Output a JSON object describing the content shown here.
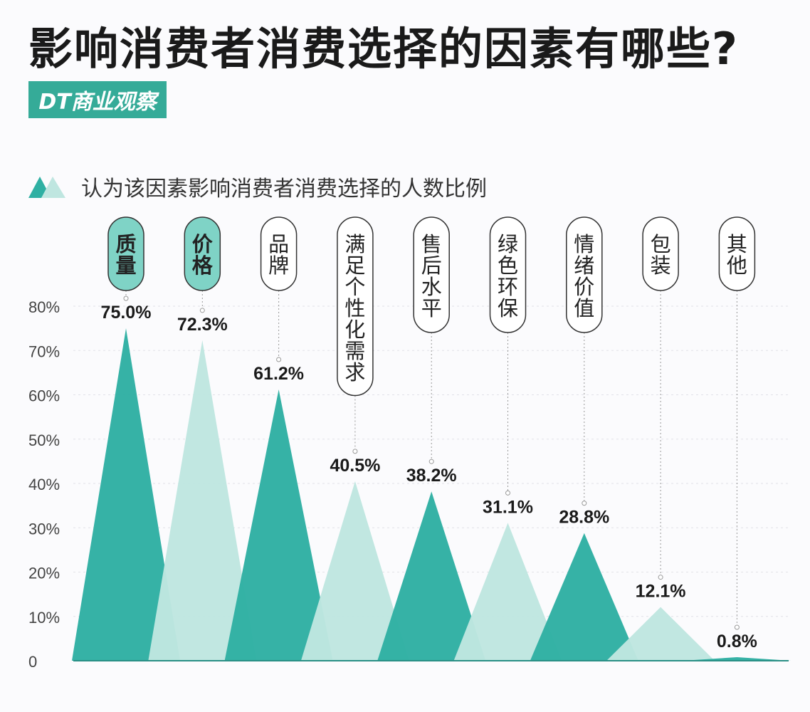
{
  "title": "影响消费者消费选择的因素有哪些?",
  "logo": "DT商业观察",
  "colors": {
    "dark": "#2fb0a3",
    "light": "#bfe6e0",
    "highlight": "#7fd3c6"
  },
  "chart_data": {
    "type": "area",
    "title": "影响消费者消费选择的因素有哪些?",
    "legend": "认为该因素影响消费者消费选择的人数比例",
    "legend_position": "top-left",
    "ylim": [
      0,
      80
    ],
    "yticks": [
      "0",
      "10%",
      "20%",
      "30%",
      "40%",
      "50%",
      "60%",
      "70%",
      "80%"
    ],
    "grid": true,
    "categories": [
      "质量",
      "价格",
      "品牌",
      "满足个性化需求",
      "售后水平",
      "绿色环保",
      "情绪价值",
      "包装",
      "其他"
    ],
    "values": [
      75.0,
      72.3,
      61.2,
      40.5,
      38.2,
      31.1,
      28.8,
      12.1,
      0.8
    ],
    "value_labels": [
      "75.0%",
      "72.3%",
      "61.2%",
      "40.5%",
      "38.2%",
      "31.1%",
      "28.8%",
      "12.1%",
      "0.8%"
    ],
    "highlighted": [
      "质量",
      "价格"
    ]
  }
}
